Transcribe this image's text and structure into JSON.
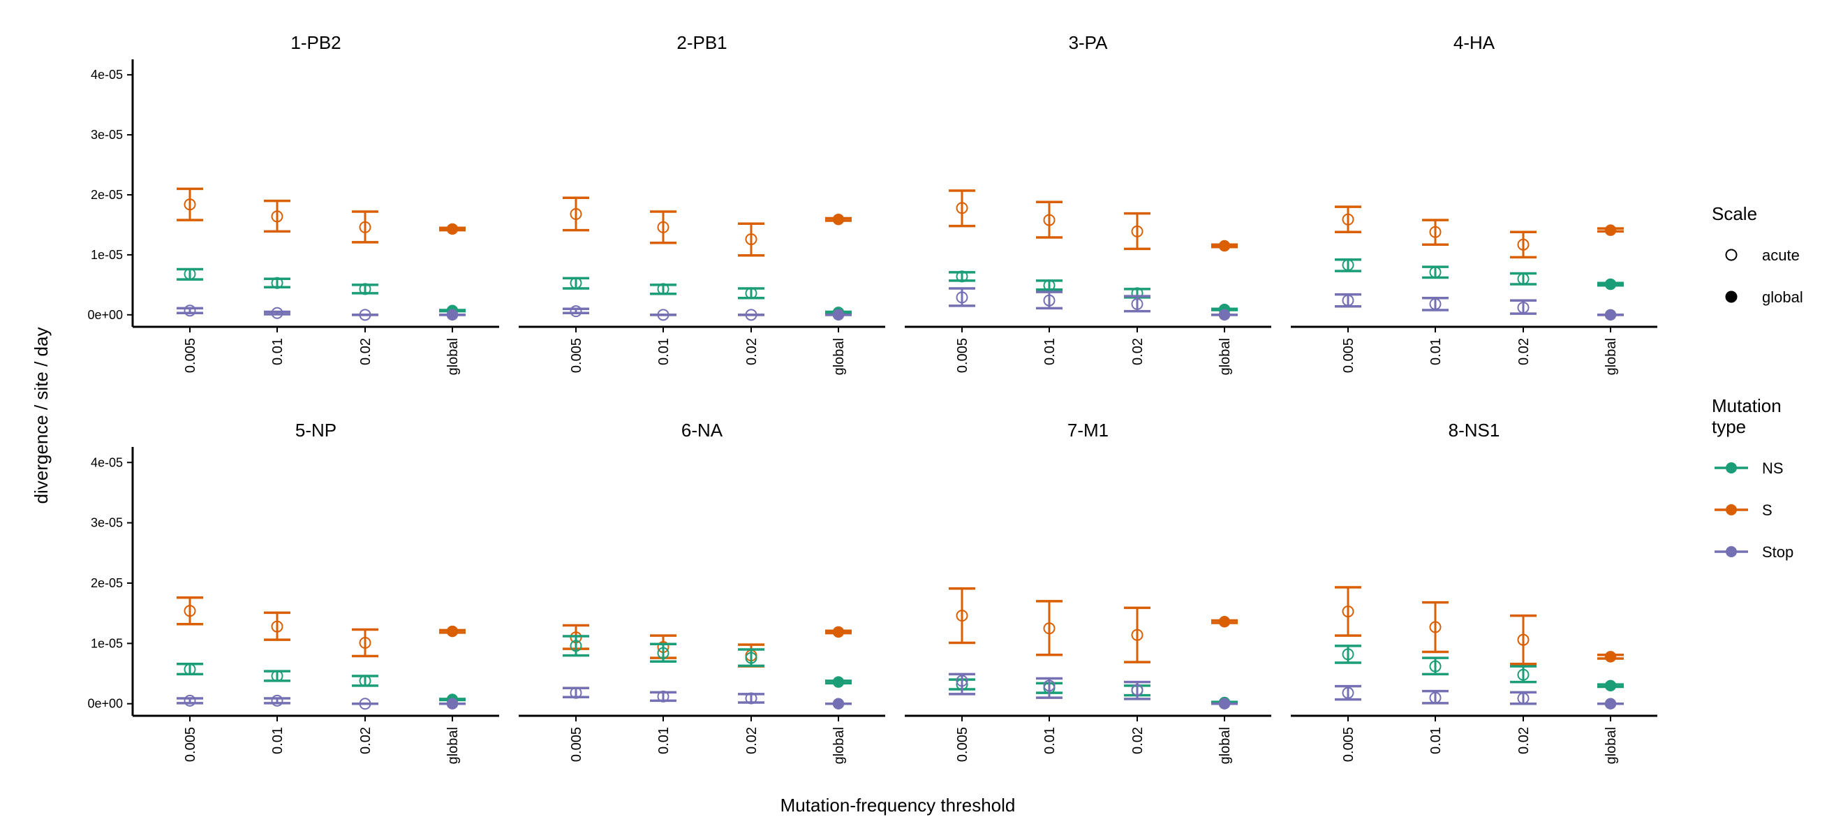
{
  "chart_data": {
    "type": "scatter",
    "description_free": true,
    "xlabel": "Mutation-frequency threshold",
    "ylabel": "divergence / site / day",
    "categories": [
      "0.005",
      "0.01",
      "0.02",
      "global"
    ],
    "ylim": [
      -2e-06,
      4.2e-05
    ],
    "yticks": [
      0,
      1e-05,
      2e-05,
      3e-05,
      4e-05
    ],
    "ytick_labels": [
      "0e+00",
      "1e-05",
      "2e-05",
      "3e-05",
      "4e-05"
    ],
    "grid": false,
    "colors": {
      "NS": "#1b9e77",
      "S": "#d95f02",
      "Stop": "#7570b3"
    },
    "legend": {
      "placement": "right",
      "scale": {
        "title": "Scale",
        "items": [
          {
            "label": "acute",
            "marker": "open-circle"
          },
          {
            "label": "global",
            "marker": "filled-circle"
          }
        ]
      },
      "mutation_type": {
        "title_lines": [
          "Mutation",
          "type"
        ],
        "items": [
          "NS",
          "S",
          "Stop"
        ]
      }
    },
    "panels": [
      {
        "title": "1-PB2",
        "series": {
          "S": [
            {
              "v": 1.84e-05,
              "lo": 1.58e-05,
              "hi": 2.1e-05
            },
            {
              "v": 1.64e-05,
              "lo": 1.39e-05,
              "hi": 1.9e-05
            },
            {
              "v": 1.46e-05,
              "lo": 1.21e-05,
              "hi": 1.72e-05
            },
            {
              "v": 1.43e-05,
              "lo": 1.41e-05,
              "hi": 1.45e-05
            }
          ],
          "NS": [
            {
              "v": 6.8e-06,
              "lo": 5.9e-06,
              "hi": 7.6e-06
            },
            {
              "v": 5.3e-06,
              "lo": 4.6e-06,
              "hi": 6e-06
            },
            {
              "v": 4.3e-06,
              "lo": 3.6e-06,
              "hi": 5e-06
            },
            {
              "v": 7e-07,
              "lo": 6e-07,
              "hi": 8e-07
            }
          ],
          "Stop": [
            {
              "v": 7e-07,
              "lo": 3e-07,
              "hi": 1.1e-06
            },
            {
              "v": 3e-07,
              "lo": 1e-07,
              "hi": 5e-07
            },
            {
              "v": 0,
              "lo": 0,
              "hi": 0
            },
            {
              "v": 0,
              "lo": 0,
              "hi": 0
            }
          ]
        }
      },
      {
        "title": "2-PB1",
        "series": {
          "S": [
            {
              "v": 1.68e-05,
              "lo": 1.41e-05,
              "hi": 1.95e-05
            },
            {
              "v": 1.46e-05,
              "lo": 1.2e-05,
              "hi": 1.72e-05
            },
            {
              "v": 1.26e-05,
              "lo": 9.9e-06,
              "hi": 1.52e-05
            },
            {
              "v": 1.59e-05,
              "lo": 1.57e-05,
              "hi": 1.61e-05
            }
          ],
          "NS": [
            {
              "v": 5.3e-06,
              "lo": 4.4e-06,
              "hi": 6.1e-06
            },
            {
              "v": 4.3e-06,
              "lo": 3.5e-06,
              "hi": 5e-06
            },
            {
              "v": 3.6e-06,
              "lo": 2.8e-06,
              "hi": 4.4e-06
            },
            {
              "v": 4e-07,
              "lo": 3e-07,
              "hi": 5e-07
            }
          ],
          "Stop": [
            {
              "v": 6e-07,
              "lo": 3e-07,
              "hi": 1e-06
            },
            {
              "v": 0,
              "lo": 0,
              "hi": 0
            },
            {
              "v": 0,
              "lo": 0,
              "hi": 0
            },
            {
              "v": 0,
              "lo": 0,
              "hi": 0
            }
          ]
        }
      },
      {
        "title": "3-PA",
        "series": {
          "S": [
            {
              "v": 1.78e-05,
              "lo": 1.48e-05,
              "hi": 2.07e-05
            },
            {
              "v": 1.58e-05,
              "lo": 1.29e-05,
              "hi": 1.88e-05
            },
            {
              "v": 1.39e-05,
              "lo": 1.1e-05,
              "hi": 1.69e-05
            },
            {
              "v": 1.15e-05,
              "lo": 1.13e-05,
              "hi": 1.17e-05
            }
          ],
          "NS": [
            {
              "v": 6.4e-06,
              "lo": 5.7e-06,
              "hi": 7.1e-06
            },
            {
              "v": 4.9e-06,
              "lo": 4.2e-06,
              "hi": 5.7e-06
            },
            {
              "v": 3.6e-06,
              "lo": 2.9e-06,
              "hi": 4.3e-06
            },
            {
              "v": 9e-07,
              "lo": 8e-07,
              "hi": 1e-06
            }
          ],
          "Stop": [
            {
              "v": 2.9e-06,
              "lo": 1.5e-06,
              "hi": 4.4e-06
            },
            {
              "v": 2.4e-06,
              "lo": 1.1e-06,
              "hi": 3.8e-06
            },
            {
              "v": 1.8e-06,
              "lo": 6e-07,
              "hi": 3.1e-06
            },
            {
              "v": 0,
              "lo": 0,
              "hi": 0
            }
          ]
        }
      },
      {
        "title": "4-HA",
        "series": {
          "S": [
            {
              "v": 1.59e-05,
              "lo": 1.38e-05,
              "hi": 1.8e-05
            },
            {
              "v": 1.38e-05,
              "lo": 1.17e-05,
              "hi": 1.58e-05
            },
            {
              "v": 1.17e-05,
              "lo": 9.6e-06,
              "hi": 1.38e-05
            },
            {
              "v": 1.41e-05,
              "lo": 1.39e-05,
              "hi": 1.44e-05
            }
          ],
          "NS": [
            {
              "v": 8.3e-06,
              "lo": 7.3e-06,
              "hi": 9.2e-06
            },
            {
              "v": 7.1e-06,
              "lo": 6.2e-06,
              "hi": 8e-06
            },
            {
              "v": 6e-06,
              "lo": 5.1e-06,
              "hi": 6.9e-06
            },
            {
              "v": 5.1e-06,
              "lo": 4.9e-06,
              "hi": 5.3e-06
            }
          ],
          "Stop": [
            {
              "v": 2.4e-06,
              "lo": 1.4e-06,
              "hi": 3.4e-06
            },
            {
              "v": 1.8e-06,
              "lo": 8e-07,
              "hi": 2.8e-06
            },
            {
              "v": 1.2e-06,
              "lo": 2e-07,
              "hi": 2.4e-06
            },
            {
              "v": 0,
              "lo": 0,
              "hi": 0
            }
          ]
        }
      },
      {
        "title": "5-NP",
        "series": {
          "S": [
            {
              "v": 1.54e-05,
              "lo": 1.32e-05,
              "hi": 1.76e-05
            },
            {
              "v": 1.28e-05,
              "lo": 1.06e-05,
              "hi": 1.51e-05
            },
            {
              "v": 1.01e-05,
              "lo": 7.9e-06,
              "hi": 1.23e-05
            },
            {
              "v": 1.2e-05,
              "lo": 1.18e-05,
              "hi": 1.22e-05
            }
          ],
          "NS": [
            {
              "v": 5.7e-06,
              "lo": 4.9e-06,
              "hi": 6.6e-06
            },
            {
              "v": 4.6e-06,
              "lo": 3.8e-06,
              "hi": 5.4e-06
            },
            {
              "v": 3.8e-06,
              "lo": 3e-06,
              "hi": 4.6e-06
            },
            {
              "v": 7e-07,
              "lo": 6e-07,
              "hi": 8e-07
            }
          ],
          "Stop": [
            {
              "v": 5e-07,
              "lo": 1e-07,
              "hi": 9e-07
            },
            {
              "v": 5e-07,
              "lo": 1e-07,
              "hi": 9e-07
            },
            {
              "v": 0,
              "lo": 0,
              "hi": 0
            },
            {
              "v": 0,
              "lo": 0,
              "hi": 0
            }
          ]
        }
      },
      {
        "title": "6-NA",
        "series": {
          "S": [
            {
              "v": 1.1e-05,
              "lo": 9.1e-06,
              "hi": 1.3e-05
            },
            {
              "v": 9.4e-06,
              "lo": 7.6e-06,
              "hi": 1.13e-05
            },
            {
              "v": 8e-06,
              "lo": 6.2e-06,
              "hi": 9.8e-06
            },
            {
              "v": 1.19e-05,
              "lo": 1.17e-05,
              "hi": 1.21e-05
            }
          ],
          "NS": [
            {
              "v": 9.6e-06,
              "lo": 8e-06,
              "hi": 1.12e-05
            },
            {
              "v": 8.4e-06,
              "lo": 7e-06,
              "hi": 9.9e-06
            },
            {
              "v": 7.6e-06,
              "lo": 6.3e-06,
              "hi": 9e-06
            },
            {
              "v": 3.6e-06,
              "lo": 3.4e-06,
              "hi": 3.8e-06
            }
          ],
          "Stop": [
            {
              "v": 1.8e-06,
              "lo": 1.1e-06,
              "hi": 2.6e-06
            },
            {
              "v": 1.2e-06,
              "lo": 5e-07,
              "hi": 1.9e-06
            },
            {
              "v": 9e-07,
              "lo": 2e-07,
              "hi": 1.6e-06
            },
            {
              "v": 0,
              "lo": 0,
              "hi": 0
            }
          ]
        }
      },
      {
        "title": "7-M1",
        "series": {
          "S": [
            {
              "v": 1.46e-05,
              "lo": 1.01e-05,
              "hi": 1.91e-05
            },
            {
              "v": 1.25e-05,
              "lo": 8.1e-06,
              "hi": 1.7e-05
            },
            {
              "v": 1.14e-05,
              "lo": 6.9e-06,
              "hi": 1.59e-05
            },
            {
              "v": 1.36e-05,
              "lo": 1.34e-05,
              "hi": 1.38e-05
            }
          ],
          "NS": [
            {
              "v": 3.2e-06,
              "lo": 2.4e-06,
              "hi": 4e-06
            },
            {
              "v": 2.6e-06,
              "lo": 1.8e-06,
              "hi": 3.4e-06
            },
            {
              "v": 2.2e-06,
              "lo": 1.4e-06,
              "hi": 3e-06
            },
            {
              "v": 2e-07,
              "lo": 1e-07,
              "hi": 3e-07
            }
          ],
          "Stop": [
            {
              "v": 3.8e-06,
              "lo": 1.6e-06,
              "hi": 4.9e-06
            },
            {
              "v": 3e-06,
              "lo": 1e-06,
              "hi": 4.2e-06
            },
            {
              "v": 2.3e-06,
              "lo": 8e-07,
              "hi": 3.6e-06
            },
            {
              "v": 0,
              "lo": 0,
              "hi": 0
            }
          ]
        }
      },
      {
        "title": "8-NS1",
        "series": {
          "S": [
            {
              "v": 1.53e-05,
              "lo": 1.13e-05,
              "hi": 1.93e-05
            },
            {
              "v": 1.27e-05,
              "lo": 8.6e-06,
              "hi": 1.68e-05
            },
            {
              "v": 1.06e-05,
              "lo": 6.6e-06,
              "hi": 1.46e-05
            },
            {
              "v": 7.8e-06,
              "lo": 7.5e-06,
              "hi": 8.1e-06
            }
          ],
          "NS": [
            {
              "v": 8.2e-06,
              "lo": 6.8e-06,
              "hi": 9.6e-06
            },
            {
              "v": 6.2e-06,
              "lo": 4.9e-06,
              "hi": 7.6e-06
            },
            {
              "v": 4.8e-06,
              "lo": 3.6e-06,
              "hi": 6.2e-06
            },
            {
              "v": 3e-06,
              "lo": 2.8e-06,
              "hi": 3.2e-06
            }
          ],
          "Stop": [
            {
              "v": 1.8e-06,
              "lo": 7e-07,
              "hi": 2.9e-06
            },
            {
              "v": 1e-06,
              "lo": 1e-07,
              "hi": 2.1e-06
            },
            {
              "v": 9e-07,
              "lo": 0,
              "hi": 1.9e-06
            },
            {
              "v": 0,
              "lo": 0,
              "hi": 0
            }
          ]
        }
      }
    ]
  }
}
